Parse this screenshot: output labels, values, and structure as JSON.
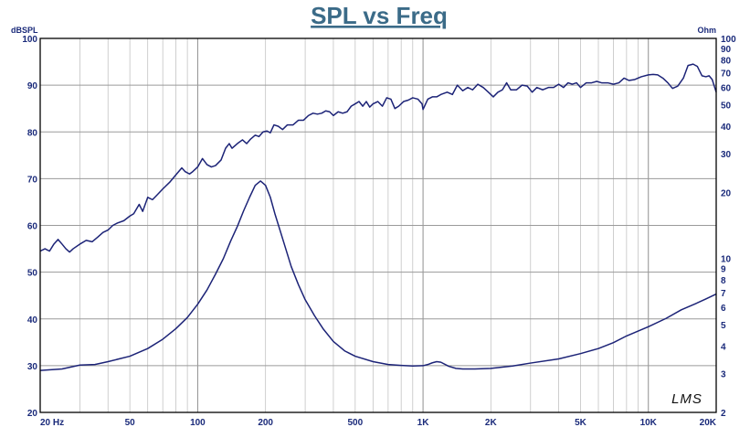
{
  "chart_data": {
    "type": "line",
    "title": "SPL vs Freq",
    "left_axis_label": "dBSPL",
    "right_axis_label": "Ohm",
    "x_scale": "log",
    "xlim": [
      20,
      20000
    ],
    "y_left_lim": [
      20,
      100
    ],
    "y_right_scale": "log",
    "y_right_lim": [
      2,
      100
    ],
    "grid": true,
    "x_tick_labels": [
      {
        "value": 20,
        "label": "20  Hz"
      },
      {
        "value": 50,
        "label": "50"
      },
      {
        "value": 100,
        "label": "100"
      },
      {
        "value": 200,
        "label": "200"
      },
      {
        "value": 500,
        "label": "500"
      },
      {
        "value": 1000,
        "label": "1K"
      },
      {
        "value": 2000,
        "label": "2K"
      },
      {
        "value": 5000,
        "label": "5K"
      },
      {
        "value": 10000,
        "label": "10K"
      },
      {
        "value": 20000,
        "label": "20K"
      }
    ],
    "y_left_ticks": [
      100,
      90,
      80,
      70,
      60,
      50,
      40,
      30,
      20
    ],
    "y_right_ticks": [
      100,
      90,
      80,
      70,
      60,
      50,
      40,
      30,
      20,
      10,
      9,
      8,
      7,
      6,
      5,
      4,
      3,
      2
    ],
    "series": [
      {
        "axis": "left",
        "points": [
          [
            20,
            54.5
          ],
          [
            21,
            55
          ],
          [
            22,
            54.5
          ],
          [
            23,
            56
          ],
          [
            24,
            57
          ],
          [
            25,
            56
          ],
          [
            26,
            55
          ],
          [
            27,
            54.3
          ],
          [
            28,
            55
          ],
          [
            30,
            56
          ],
          [
            32,
            56.8
          ],
          [
            34,
            56.5
          ],
          [
            36,
            57.5
          ],
          [
            38,
            58.5
          ],
          [
            40,
            59
          ],
          [
            42,
            60
          ],
          [
            44,
            60.5
          ],
          [
            47,
            61
          ],
          [
            50,
            62
          ],
          [
            52,
            62.5
          ],
          [
            55,
            64.5
          ],
          [
            57,
            63
          ],
          [
            60,
            66
          ],
          [
            63,
            65.5
          ],
          [
            66,
            66.5
          ],
          [
            70,
            67.8
          ],
          [
            75,
            69.2
          ],
          [
            80,
            70.8
          ],
          [
            85,
            72.3
          ],
          [
            88,
            71.5
          ],
          [
            92,
            71
          ],
          [
            95,
            71.5
          ],
          [
            100,
            72.5
          ],
          [
            105,
            74.3
          ],
          [
            110,
            73
          ],
          [
            115,
            72.5
          ],
          [
            120,
            72.8
          ],
          [
            127,
            74
          ],
          [
            133,
            76.5
          ],
          [
            138,
            77.5
          ],
          [
            142,
            76.5
          ],
          [
            150,
            77.5
          ],
          [
            158,
            78.3
          ],
          [
            165,
            77.5
          ],
          [
            172,
            78.5
          ],
          [
            180,
            79.3
          ],
          [
            187,
            79
          ],
          [
            195,
            80
          ],
          [
            203,
            80.2
          ],
          [
            210,
            79.8
          ],
          [
            218,
            81.5
          ],
          [
            228,
            81.2
          ],
          [
            238,
            80.5
          ],
          [
            250,
            81.5
          ],
          [
            265,
            81.5
          ],
          [
            280,
            82.5
          ],
          [
            295,
            82.5
          ],
          [
            310,
            83.5
          ],
          [
            325,
            84
          ],
          [
            340,
            83.8
          ],
          [
            355,
            84
          ],
          [
            370,
            84.5
          ],
          [
            385,
            84.3
          ],
          [
            400,
            83.5
          ],
          [
            420,
            84.3
          ],
          [
            440,
            84
          ],
          [
            460,
            84.3
          ],
          [
            480,
            85.5
          ],
          [
            500,
            86
          ],
          [
            520,
            86.5
          ],
          [
            540,
            85.5
          ],
          [
            560,
            86.5
          ],
          [
            580,
            85.3
          ],
          [
            600,
            86
          ],
          [
            630,
            86.5
          ],
          [
            660,
            85.5
          ],
          [
            690,
            87.3
          ],
          [
            720,
            87
          ],
          [
            750,
            85
          ],
          [
            780,
            85.5
          ],
          [
            820,
            86.5
          ],
          [
            860,
            86.8
          ],
          [
            900,
            87.3
          ],
          [
            950,
            87
          ],
          [
            990,
            86
          ],
          [
            1000,
            84.8
          ],
          [
            1050,
            87
          ],
          [
            1100,
            87.5
          ],
          [
            1150,
            87.5
          ],
          [
            1200,
            88
          ],
          [
            1280,
            88.5
          ],
          [
            1350,
            88
          ],
          [
            1420,
            90
          ],
          [
            1500,
            88.8
          ],
          [
            1580,
            89.5
          ],
          [
            1660,
            89
          ],
          [
            1750,
            90.2
          ],
          [
            1850,
            89.5
          ],
          [
            1950,
            88.5
          ],
          [
            2050,
            87.5
          ],
          [
            2150,
            88.5
          ],
          [
            2250,
            89
          ],
          [
            2350,
            90.5
          ],
          [
            2450,
            89
          ],
          [
            2600,
            89
          ],
          [
            2750,
            90
          ],
          [
            2900,
            89.8
          ],
          [
            3050,
            88.5
          ],
          [
            3200,
            89.5
          ],
          [
            3400,
            89
          ],
          [
            3600,
            89.5
          ],
          [
            3800,
            89.5
          ],
          [
            4000,
            90.2
          ],
          [
            4200,
            89.5
          ],
          [
            4400,
            90.5
          ],
          [
            4600,
            90.2
          ],
          [
            4800,
            90.5
          ],
          [
            5000,
            89.5
          ],
          [
            5300,
            90.5
          ],
          [
            5600,
            90.5
          ],
          [
            5900,
            90.8
          ],
          [
            6200,
            90.5
          ],
          [
            6600,
            90.5
          ],
          [
            7000,
            90.2
          ],
          [
            7400,
            90.5
          ],
          [
            7800,
            91.5
          ],
          [
            8200,
            91
          ],
          [
            8700,
            91.2
          ],
          [
            9300,
            91.8
          ],
          [
            10000,
            92.2
          ],
          [
            10500,
            92.3
          ],
          [
            11000,
            92.2
          ],
          [
            11600,
            91.5
          ],
          [
            12200,
            90.5
          ],
          [
            12800,
            89.3
          ],
          [
            13500,
            89.8
          ],
          [
            14300,
            91.5
          ],
          [
            15000,
            94.2
          ],
          [
            15800,
            94.5
          ],
          [
            16500,
            94
          ],
          [
            17300,
            92
          ],
          [
            18000,
            91.8
          ],
          [
            18600,
            92
          ],
          [
            19200,
            91.2
          ],
          [
            19700,
            89.5
          ],
          [
            20000,
            88.5
          ]
        ]
      },
      {
        "axis": "right",
        "points": [
          [
            20,
            3.1
          ],
          [
            25,
            3.15
          ],
          [
            30,
            3.28
          ],
          [
            35,
            3.3
          ],
          [
            40,
            3.4
          ],
          [
            50,
            3.6
          ],
          [
            60,
            3.9
          ],
          [
            70,
            4.3
          ],
          [
            80,
            4.8
          ],
          [
            90,
            5.4
          ],
          [
            100,
            6.2
          ],
          [
            110,
            7.2
          ],
          [
            120,
            8.5
          ],
          [
            130,
            10
          ],
          [
            140,
            12
          ],
          [
            150,
            14
          ],
          [
            160,
            16.5
          ],
          [
            170,
            19
          ],
          [
            180,
            21.5
          ],
          [
            190,
            22.5
          ],
          [
            200,
            21.5
          ],
          [
            210,
            19
          ],
          [
            220,
            16
          ],
          [
            240,
            12
          ],
          [
            260,
            9.2
          ],
          [
            280,
            7.6
          ],
          [
            300,
            6.5
          ],
          [
            330,
            5.5
          ],
          [
            360,
            4.8
          ],
          [
            400,
            4.2
          ],
          [
            450,
            3.8
          ],
          [
            500,
            3.6
          ],
          [
            600,
            3.4
          ],
          [
            700,
            3.3
          ],
          [
            800,
            3.27
          ],
          [
            900,
            3.25
          ],
          [
            1000,
            3.26
          ],
          [
            1050,
            3.3
          ],
          [
            1100,
            3.36
          ],
          [
            1150,
            3.4
          ],
          [
            1200,
            3.38
          ],
          [
            1300,
            3.24
          ],
          [
            1400,
            3.17
          ],
          [
            1500,
            3.15
          ],
          [
            1700,
            3.15
          ],
          [
            2000,
            3.17
          ],
          [
            2500,
            3.25
          ],
          [
            3000,
            3.35
          ],
          [
            4000,
            3.5
          ],
          [
            5000,
            3.7
          ],
          [
            6000,
            3.9
          ],
          [
            7000,
            4.15
          ],
          [
            8000,
            4.45
          ],
          [
            10000,
            4.9
          ],
          [
            12000,
            5.35
          ],
          [
            14000,
            5.85
          ],
          [
            16000,
            6.2
          ],
          [
            18000,
            6.55
          ],
          [
            20000,
            6.9
          ]
        ]
      }
    ],
    "logo_text": "LMS"
  }
}
